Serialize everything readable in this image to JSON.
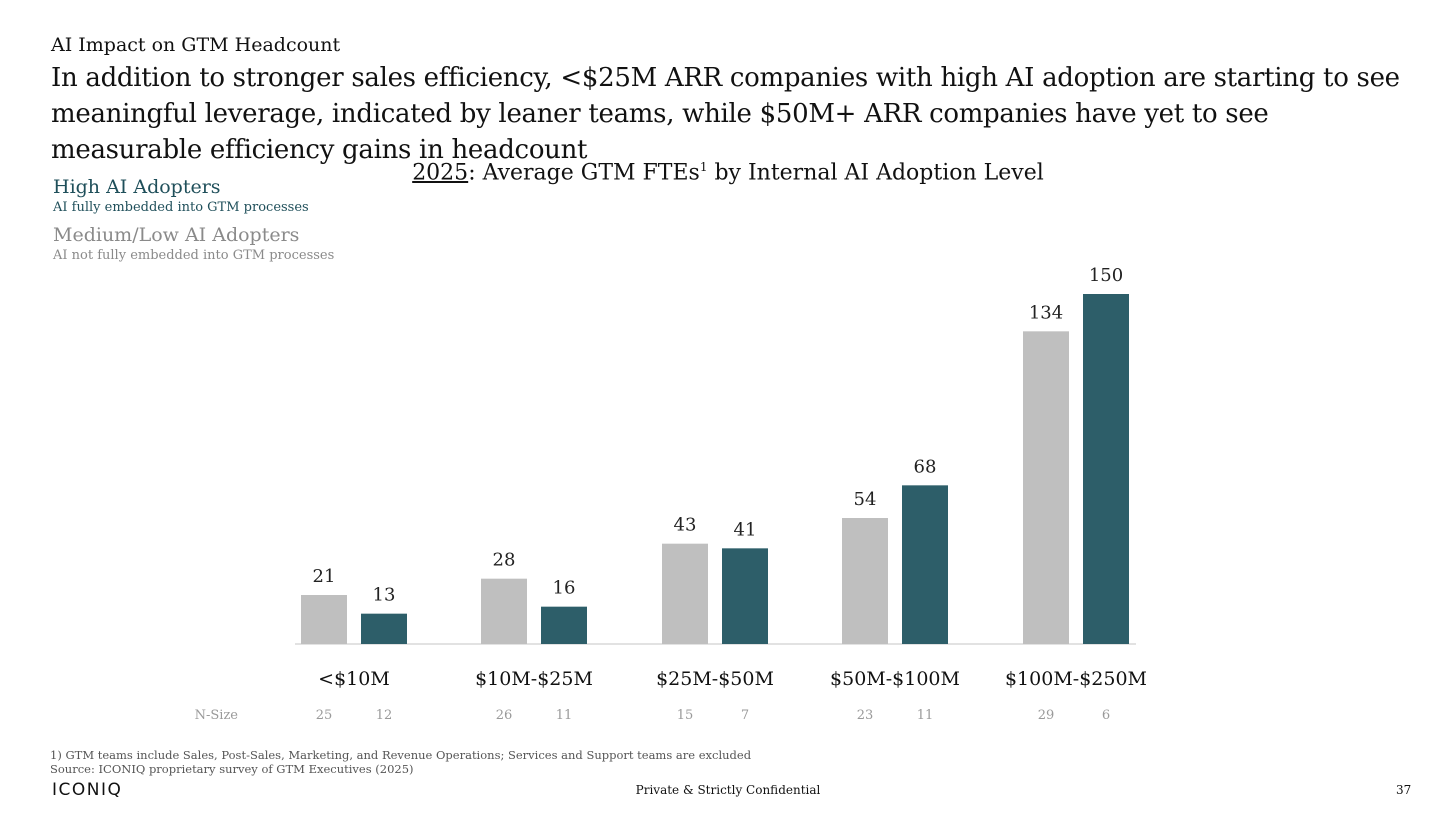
{
  "header": {
    "section_label": "AI Impact on GTM Headcount",
    "headline": "In addition to stronger sales efficiency, <$25M ARR companies with high AI adoption are starting to see meaningful leverage, indicated by leaner teams, while $50M+ ARR companies have yet to see measurable efficiency gains in headcount"
  },
  "legend": {
    "high": {
      "title": "High AI Adopters",
      "subtitle": "AI fully embedded into GTM processes"
    },
    "medium": {
      "title": "Medium/Low AI Adopters",
      "subtitle": "AI not fully embedded into GTM processes"
    }
  },
  "chart_title": {
    "year": "2025",
    "rest": ": Average GTM FTEs",
    "superscript": "1",
    "suffix": " by Internal AI Adoption Level"
  },
  "colors": {
    "high": "#2d5e69",
    "medium": "#bfbfbf",
    "high_text": "#1f4f5a",
    "medium_text": "#8a8a8a",
    "axis": "#d9d9d9",
    "nsize_text": "#9a9a9a"
  },
  "chart_data": {
    "type": "bar",
    "title": "2025: Average GTM FTEs by Internal AI Adoption Level",
    "categories": [
      "<$10M",
      "$10M-$25M",
      "$25M-$50M",
      "$50M-$100M",
      "$100M-$250M"
    ],
    "series": [
      {
        "name": "Medium/Low AI Adopters",
        "values": [
          21,
          28,
          43,
          54,
          134
        ]
      },
      {
        "name": "High AI Adopters",
        "values": [
          13,
          16,
          41,
          68,
          150
        ]
      }
    ],
    "n_size_label": "N-Size",
    "n_size": [
      [
        25,
        12
      ],
      [
        26,
        11
      ],
      [
        15,
        7
      ],
      [
        23,
        11
      ],
      [
        29,
        6
      ]
    ],
    "ylim": [
      0,
      150
    ],
    "grid": false,
    "xlabel": "",
    "ylabel": ""
  },
  "footer": {
    "footnote": "1) GTM teams include Sales, Post-Sales, Marketing, and Revenue Operations; Services and Support teams are excluded",
    "source": "Source: ICONIQ proprietary survey of GTM Executives (2025)",
    "brand": "ICONIQ",
    "confidential": "Private & Strictly Confidential",
    "page_number": "37"
  }
}
